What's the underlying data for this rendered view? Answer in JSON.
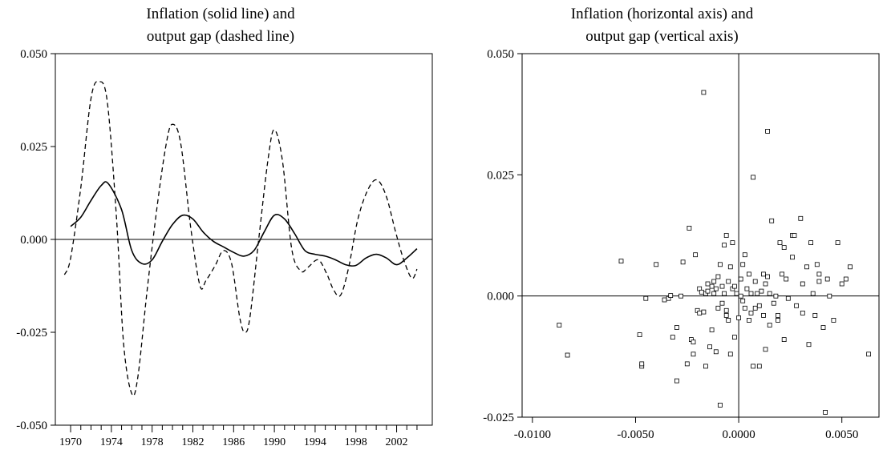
{
  "chart_data": [
    {
      "type": "line",
      "title_line1": "Inflation (solid line) and",
      "title_line2": "output gap (dashed line)",
      "xlabel": "",
      "ylabel": "",
      "xlim": [
        1968.5,
        2005.5
      ],
      "ylim": [
        -0.05,
        0.05
      ],
      "y_ticks": [
        -0.05,
        -0.025,
        0.0,
        0.025,
        0.05
      ],
      "y_tick_labels": [
        "-0.050",
        "-0.025",
        "0.000",
        "0.025",
        "0.050"
      ],
      "x_tick_labels": [
        "1970",
        "1974",
        "1978",
        "1982",
        "1986",
        "1990",
        "1994",
        "1998",
        "2002"
      ],
      "x_tick_values": [
        1970,
        1974,
        1978,
        1982,
        1986,
        1990,
        1994,
        1998,
        2002
      ],
      "zero_line": true,
      "series": [
        {
          "style": "solid",
          "x": [
            1970,
            1971,
            1972,
            1973,
            1973.7,
            1975,
            1976,
            1977,
            1978,
            1979,
            1980,
            1981,
            1982,
            1983,
            1984,
            1985,
            1986,
            1987,
            1988,
            1989,
            1990,
            1991,
            1992,
            1993,
            1994,
            1995,
            1996,
            1997,
            1998,
            1999,
            2000,
            2001,
            2002,
            2003,
            2004
          ],
          "y": [
            0.0035,
            0.006,
            0.0105,
            0.0145,
            0.015,
            0.008,
            -0.003,
            -0.0065,
            -0.0055,
            -0.0005,
            0.004,
            0.0065,
            0.0055,
            0.002,
            -0.0005,
            -0.002,
            -0.0035,
            -0.0045,
            -0.003,
            0.002,
            0.0065,
            0.0055,
            0.0015,
            -0.003,
            -0.004,
            -0.0045,
            -0.0055,
            -0.0068,
            -0.007,
            -0.005,
            -0.004,
            -0.005,
            -0.0068,
            -0.005,
            -0.0025
          ]
        },
        {
          "style": "dashed",
          "x": [
            1969.4,
            1970,
            1971,
            1972,
            1972.8,
            1973.6,
            1974.5,
            1975.2,
            1976,
            1976.6,
            1977.5,
            1978.5,
            1979.4,
            1980,
            1980.8,
            1981.8,
            1982.7,
            1983.3,
            1984.2,
            1985,
            1985.8,
            1986.6,
            1987.1,
            1987.6,
            1988.5,
            1989.4,
            1990,
            1990.8,
            1991.7,
            1992.6,
            1993.3,
            1994.3,
            1995.1,
            1995.8,
            1996.5,
            1997.3,
            1998.2,
            1999.2,
            2000.1,
            2001,
            2001.9,
            2002.7,
            2003.5,
            2004
          ],
          "y": [
            -0.0095,
            -0.005,
            0.014,
            0.038,
            0.0425,
            0.037,
            0.006,
            -0.028,
            -0.0415,
            -0.037,
            -0.014,
            0.009,
            0.026,
            0.031,
            0.026,
            0.003,
            -0.0125,
            -0.011,
            -0.007,
            -0.003,
            -0.0065,
            -0.021,
            -0.025,
            -0.021,
            0.001,
            0.022,
            0.0295,
            0.021,
            -0.0025,
            -0.0085,
            -0.0075,
            -0.0055,
            -0.009,
            -0.0135,
            -0.015,
            -0.0075,
            0.0055,
            0.0135,
            0.016,
            0.0115,
            0.002,
            -0.0055,
            -0.0105,
            -0.008
          ]
        }
      ]
    },
    {
      "type": "scatter",
      "title_line1": "Inflation (horizontal axis) and",
      "title_line2": "output gap (vertical axis)",
      "xlabel": "",
      "ylabel": "",
      "xlim": [
        -0.0105,
        0.0068
      ],
      "ylim": [
        -0.025,
        0.05
      ],
      "x_ticks": [
        -0.01,
        -0.005,
        0.0,
        0.005
      ],
      "x_tick_labels": [
        "-0.0100",
        "-0.0050",
        "0.0000",
        "0.0050"
      ],
      "y_ticks": [
        -0.025,
        0.0,
        0.025,
        0.05
      ],
      "y_tick_labels": [
        "-0.025",
        "0.000",
        "0.025",
        "0.050"
      ],
      "zero_lines": true,
      "points": [
        [
          -0.0087,
          -0.006
        ],
        [
          -0.0083,
          -0.0122
        ],
        [
          -0.0057,
          0.0072
        ],
        [
          -0.0048,
          -0.008
        ],
        [
          -0.0047,
          -0.0145
        ],
        [
          -0.0047,
          -0.014
        ],
        [
          -0.0045,
          -0.0005
        ],
        [
          -0.004,
          0.0065
        ],
        [
          -0.0036,
          -0.0008
        ],
        [
          -0.0034,
          -0.0005
        ],
        [
          -0.0033,
          0.0001
        ],
        [
          -0.0032,
          -0.0085
        ],
        [
          -0.003,
          -0.0065
        ],
        [
          -0.003,
          -0.0175
        ],
        [
          -0.0028,
          0.0
        ],
        [
          -0.0027,
          0.007
        ],
        [
          -0.0025,
          -0.014
        ],
        [
          -0.0024,
          0.014
        ],
        [
          -0.0023,
          -0.009
        ],
        [
          -0.0022,
          -0.0095
        ],
        [
          -0.0022,
          -0.012
        ],
        [
          -0.0021,
          0.0085
        ],
        [
          -0.002,
          -0.003
        ],
        [
          -0.0019,
          -0.0035
        ],
        [
          -0.0019,
          0.0015
        ],
        [
          -0.0018,
          0.0008
        ],
        [
          -0.0017,
          0.042
        ],
        [
          -0.0017,
          -0.0033
        ],
        [
          -0.0016,
          0.0005
        ],
        [
          -0.0016,
          -0.0145
        ],
        [
          -0.0015,
          0.001
        ],
        [
          -0.0014,
          -0.0105
        ],
        [
          -0.0013,
          0.002
        ],
        [
          -0.0013,
          -0.007
        ],
        [
          -0.0012,
          0.003
        ],
        [
          -0.0012,
          0.0005
        ],
        [
          -0.0011,
          0.0015
        ],
        [
          -0.0011,
          -0.0115
        ],
        [
          -0.001,
          0.004
        ],
        [
          -0.001,
          -0.0025
        ],
        [
          -0.0009,
          0.0065
        ],
        [
          -0.0009,
          -0.0225
        ],
        [
          -0.0008,
          0.002
        ],
        [
          -0.0008,
          -0.0015
        ],
        [
          -0.0007,
          0.0105
        ],
        [
          -0.0007,
          0.0005
        ],
        [
          -0.0006,
          -0.004
        ],
        [
          -0.0006,
          -0.003
        ],
        [
          -0.0005,
          0.003
        ],
        [
          -0.0005,
          -0.005
        ],
        [
          -0.0004,
          0.006
        ],
        [
          -0.0004,
          -0.012
        ],
        [
          -0.0003,
          0.011
        ],
        [
          -0.0003,
          0.0015
        ],
        [
          -0.0002,
          -0.0085
        ],
        [
          -0.0002,
          0.002
        ],
        [
          -0.0001,
          0.0005
        ],
        [
          0.0,
          -0.0045
        ],
        [
          0.0001,
          0.0035
        ],
        [
          0.0002,
          0.0065
        ],
        [
          0.0002,
          -0.001
        ],
        [
          0.0003,
          0.0085
        ],
        [
          0.0003,
          -0.0025
        ],
        [
          0.0004,
          0.0015
        ],
        [
          0.0005,
          -0.005
        ],
        [
          0.0005,
          0.0045
        ],
        [
          0.0006,
          -0.0035
        ],
        [
          0.0006,
          0.0005
        ],
        [
          0.0007,
          0.0245
        ],
        [
          0.0007,
          -0.0145
        ],
        [
          0.0008,
          0.003
        ],
        [
          0.0008,
          -0.0025
        ],
        [
          0.0009,
          0.0005
        ],
        [
          0.001,
          -0.002
        ],
        [
          0.001,
          -0.0145
        ],
        [
          0.0011,
          0.001
        ],
        [
          0.0012,
          -0.004
        ],
        [
          0.0012,
          0.0045
        ],
        [
          0.0013,
          0.0025
        ],
        [
          0.0013,
          -0.011
        ],
        [
          0.0014,
          0.004
        ],
        [
          0.0014,
          0.034
        ],
        [
          0.0015,
          -0.006
        ],
        [
          0.0015,
          0.0005
        ],
        [
          0.0016,
          0.0155
        ],
        [
          0.0017,
          -0.0015
        ],
        [
          0.0018,
          0.0
        ],
        [
          0.0019,
          -0.004
        ],
        [
          0.0019,
          -0.005
        ],
        [
          0.002,
          0.011
        ],
        [
          0.0021,
          0.0045
        ],
        [
          0.0022,
          0.01
        ],
        [
          0.0022,
          -0.009
        ],
        [
          0.0023,
          0.0035
        ],
        [
          0.0024,
          -0.0005
        ],
        [
          0.0026,
          0.008
        ],
        [
          0.0026,
          0.0125
        ],
        [
          0.0027,
          0.0125
        ],
        [
          0.0028,
          -0.002
        ],
        [
          0.003,
          0.016
        ],
        [
          0.0031,
          0.0025
        ],
        [
          0.0031,
          -0.0035
        ],
        [
          0.0033,
          0.006
        ],
        [
          0.0034,
          -0.01
        ],
        [
          0.0035,
          0.011
        ],
        [
          0.0036,
          0.0005
        ],
        [
          0.0037,
          -0.004
        ],
        [
          0.0038,
          0.0065
        ],
        [
          0.0039,
          0.003
        ],
        [
          0.0041,
          -0.0065
        ],
        [
          0.0042,
          -0.024
        ],
        [
          0.0043,
          0.0035
        ],
        [
          0.0044,
          0.0
        ],
        [
          0.0046,
          -0.005
        ],
        [
          0.0048,
          0.011
        ],
        [
          0.005,
          0.0025
        ],
        [
          0.0052,
          0.0035
        ],
        [
          0.0054,
          0.006
        ],
        [
          0.0063,
          -0.012
        ],
        [
          0.0039,
          0.0045
        ],
        [
          -0.0006,
          0.0125
        ],
        [
          0.0001,
          0.0
        ],
        [
          -0.0015,
          0.0025
        ]
      ]
    }
  ]
}
